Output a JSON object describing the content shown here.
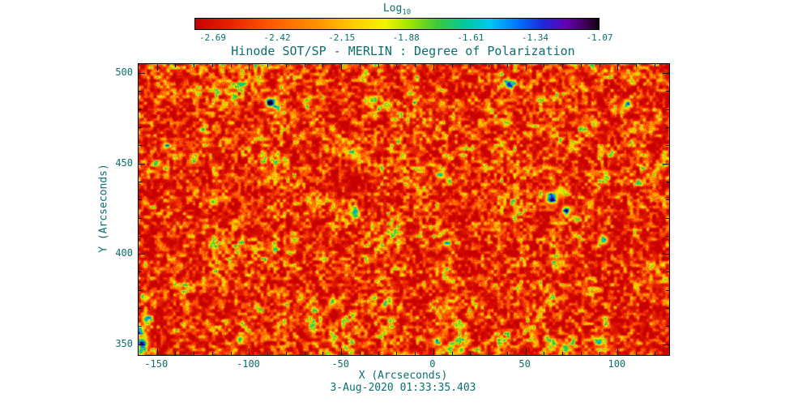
{
  "figure": {
    "text_color": "#0b6e6e",
    "frame_color": "#000000",
    "background": "#ffffff"
  },
  "chart_data": {
    "type": "heatmap",
    "title": "Hinode SOT/SP - MERLIN : Degree of Polarization",
    "xlabel": "X (Arcseconds)",
    "ylabel": "Y (Arcseconds)",
    "caption": "3-Aug-2020 01:33:35.403",
    "xlim": [
      -160,
      128
    ],
    "ylim": [
      344,
      505
    ],
    "x_ticks": [
      -150,
      -100,
      -50,
      0,
      50,
      100
    ],
    "y_ticks": [
      350,
      400,
      450,
      500
    ],
    "minor_tick_interval": 10,
    "grid": false,
    "legend": "none",
    "colorbar": {
      "label_main": "Log",
      "label_sub": "10",
      "tick_labels": [
        "-2.69",
        "-2.42",
        "-2.15",
        "-1.88",
        "-1.61",
        "-1.34",
        "-1.07"
      ],
      "tick_values": [
        -2.69,
        -2.42,
        -2.15,
        -1.88,
        -1.61,
        -1.34,
        -1.07
      ],
      "value_range": [
        -2.69,
        -1.07
      ],
      "colormap_stops": [
        {
          "t": 0.0,
          "color": "#c80000"
        },
        {
          "t": 0.08,
          "color": "#e61e00"
        },
        {
          "t": 0.18,
          "color": "#ff5500"
        },
        {
          "t": 0.3,
          "color": "#ff9100"
        },
        {
          "t": 0.4,
          "color": "#ffd000"
        },
        {
          "t": 0.47,
          "color": "#f4f400"
        },
        {
          "t": 0.53,
          "color": "#a0e600"
        },
        {
          "t": 0.6,
          "color": "#3cc83c"
        },
        {
          "t": 0.67,
          "color": "#00c8a0"
        },
        {
          "t": 0.73,
          "color": "#00c8f0"
        },
        {
          "t": 0.8,
          "color": "#0073ff"
        },
        {
          "t": 0.86,
          "color": "#1e28dc"
        },
        {
          "t": 0.92,
          "color": "#6400b4"
        },
        {
          "t": 0.97,
          "color": "#3c0050"
        },
        {
          "t": 1.0,
          "color": "#0c0014"
        }
      ]
    },
    "field_description": "Solar photospheric map: mostly low polarization (red/orange granulation) with yellow-green speckle network and sparse strong-polarization blobs (cyan/blue/dark) listed as hotspots in data coordinates (arcseconds).",
    "hotspots": [
      {
        "x": -158,
        "y": 351,
        "r": 5.0,
        "s": 0.8
      },
      {
        "x": -160,
        "y": 358,
        "r": 4.0,
        "s": 0.75
      },
      {
        "x": -156,
        "y": 364,
        "r": 3.5,
        "s": 0.7
      },
      {
        "x": -159,
        "y": 346,
        "r": 3.0,
        "s": 0.65
      },
      {
        "x": -145,
        "y": 460,
        "r": 3.0,
        "s": 0.6
      },
      {
        "x": -120,
        "y": 429,
        "r": 3.0,
        "s": 0.6
      },
      {
        "x": -105,
        "y": 353,
        "r": 3.5,
        "s": 0.65
      },
      {
        "x": -89,
        "y": 484,
        "r": 4.0,
        "s": 0.7
      },
      {
        "x": -55,
        "y": 374,
        "r": 3.0,
        "s": 0.6
      },
      {
        "x": -43,
        "y": 423,
        "r": 4.0,
        "s": 0.7
      },
      {
        "x": -24,
        "y": 374,
        "r": 3.0,
        "s": 0.6
      },
      {
        "x": 4,
        "y": 444,
        "r": 3.5,
        "s": 0.65
      },
      {
        "x": 7,
        "y": 406,
        "r": 3.0,
        "s": 0.6
      },
      {
        "x": 15,
        "y": 347,
        "r": 3.0,
        "s": 0.6
      },
      {
        "x": 41,
        "y": 494,
        "r": 4.0,
        "s": 0.7
      },
      {
        "x": 64,
        "y": 431,
        "r": 5.0,
        "s": 0.85
      },
      {
        "x": 72,
        "y": 424,
        "r": 4.0,
        "s": 0.7
      },
      {
        "x": 90,
        "y": 352,
        "r": 3.5,
        "s": 0.65
      },
      {
        "x": 92,
        "y": 408,
        "r": 4.0,
        "s": 0.7
      },
      {
        "x": 105,
        "y": 483,
        "r": 3.5,
        "s": 0.65
      }
    ]
  }
}
